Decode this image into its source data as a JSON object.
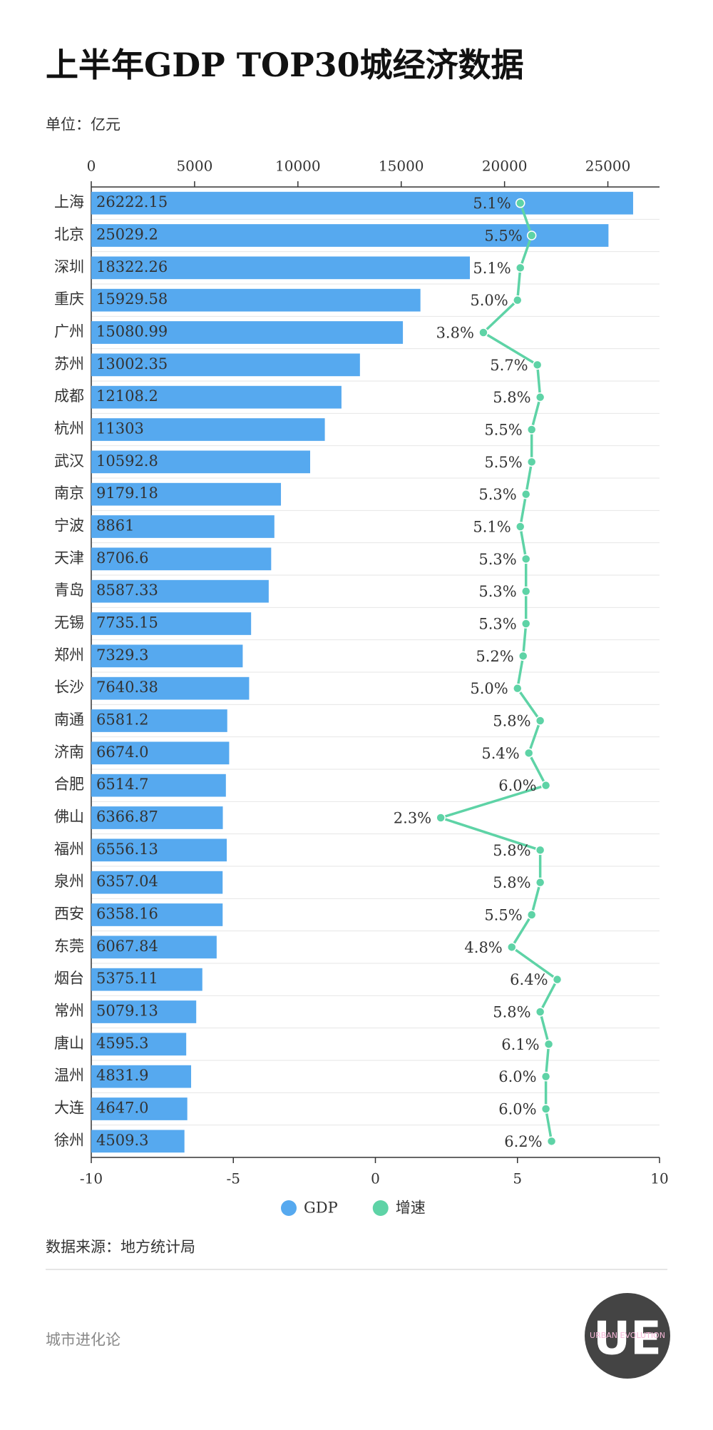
{
  "chart_data": {
    "type": "bar",
    "title": "上半年GDP TOP30城经济数据",
    "subtitle": "单位：亿元",
    "source": "数据来源：地方统计局",
    "footer": "城市进化论",
    "logo": "UE",
    "logo_subtext": "URBAN EVOLUTION",
    "orientation": "horizontal",
    "categories": [
      "上海",
      "北京",
      "深圳",
      "重庆",
      "广州",
      "苏州",
      "成都",
      "杭州",
      "武汉",
      "南京",
      "宁波",
      "天津",
      "青岛",
      "无锡",
      "郑州",
      "长沙",
      "南通",
      "济南",
      "合肥",
      "佛山",
      "福州",
      "泉州",
      "西安",
      "东莞",
      "烟台",
      "常州",
      "唐山",
      "温州",
      "大连",
      "徐州"
    ],
    "series": [
      {
        "name": "GDP",
        "type": "bar",
        "color": "#56a9ef",
        "values": [
          26222.15,
          25029.2,
          18322.26,
          15929.58,
          15080.99,
          13002.35,
          12108.2,
          11303,
          10592.8,
          9179.18,
          8861,
          8706.6,
          8587.33,
          7735.15,
          7329.3,
          7640.38,
          6581.2,
          6674.0,
          6514.7,
          6366.87,
          6556.13,
          6357.04,
          6358.16,
          6067.84,
          5375.11,
          5079.13,
          4595.3,
          4831.9,
          4647.0,
          4509.3
        ],
        "value_labels": [
          "26222.15",
          "25029.2",
          "18322.26",
          "15929.58",
          "15080.99",
          "13002.35",
          "12108.2",
          "11303",
          "10592.8",
          "9179.18",
          "8861",
          "8706.6",
          "8587.33",
          "7735.15",
          "7329.3",
          "7640.38",
          "6581.2",
          "6674.0",
          "6514.7",
          "6366.87",
          "6556.13",
          "6357.04",
          "6358.16",
          "6067.84",
          "5375.11",
          "5079.13",
          "4595.3",
          "4831.9",
          "4647.0",
          "4509.3"
        ]
      },
      {
        "name": "增速",
        "type": "line",
        "axis": "x2",
        "color": "#5ed3a6",
        "values": [
          5.1,
          5.5,
          5.1,
          5.0,
          3.8,
          5.7,
          5.8,
          5.5,
          5.5,
          5.3,
          5.1,
          5.3,
          5.3,
          5.3,
          5.2,
          5.0,
          5.8,
          5.4,
          6.0,
          2.3,
          5.8,
          5.8,
          5.5,
          4.8,
          6.4,
          5.8,
          6.1,
          6.0,
          6.0,
          6.2
        ],
        "value_labels": [
          "5.1%",
          "5.5%",
          "5.1%",
          "5.0%",
          "3.8%",
          "5.7%",
          "5.8%",
          "5.5%",
          "5.5%",
          "5.3%",
          "5.1%",
          "5.3%",
          "5.3%",
          "5.3%",
          "5.2%",
          "5.0%",
          "5.8%",
          "5.4%",
          "6.0%",
          "2.3%",
          "5.8%",
          "5.8%",
          "5.5%",
          "4.8%",
          "6.4%",
          "5.8%",
          "6.1%",
          "6.0%",
          "6.0%",
          "6.2%"
        ]
      }
    ],
    "xlim": [
      0,
      27500
    ],
    "xticks": [
      0,
      5000,
      10000,
      15000,
      20000,
      25000
    ],
    "x2lim": [
      -10,
      10
    ],
    "x2ticks": [
      -10,
      -5,
      0,
      5,
      10
    ],
    "legend": "bottom"
  }
}
